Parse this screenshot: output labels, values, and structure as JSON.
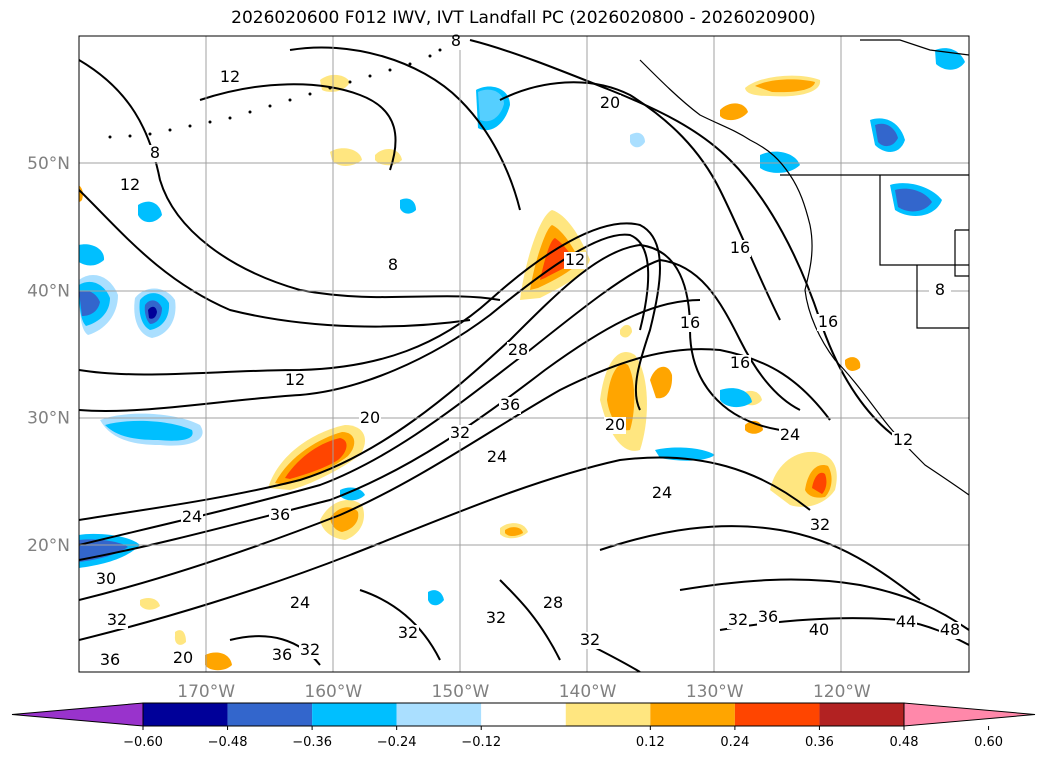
{
  "title": "2026020600 F012 IWV, IVT Landfall PC (2026020800 - 2026020900)",
  "map": {
    "lat_labels": [
      {
        "value": 50,
        "text": "50°N"
      },
      {
        "value": 40,
        "text": "40°N"
      },
      {
        "value": 30,
        "text": "30°N"
      },
      {
        "value": 20,
        "text": "20°N"
      }
    ],
    "lon_labels": [
      {
        "value": -170,
        "text": "170°W"
      },
      {
        "value": -160,
        "text": "160°W"
      },
      {
        "value": -150,
        "text": "150°W"
      },
      {
        "value": -140,
        "text": "140°W"
      },
      {
        "value": -130,
        "text": "130°W"
      },
      {
        "value": -120,
        "text": "120°W"
      }
    ],
    "contour_labels": [
      "12",
      "12",
      "8",
      "8",
      "8",
      "8",
      "12",
      "20",
      "16",
      "16",
      "16",
      "16",
      "12",
      "20",
      "36",
      "32",
      "24",
      "24",
      "20",
      "24",
      "36",
      "28",
      "32",
      "32",
      "32",
      "32",
      "28",
      "32",
      "36",
      "40",
      "44",
      "48",
      "24",
      "24",
      "32",
      "36",
      "36",
      "20",
      "30",
      "32",
      "12"
    ],
    "colors": {
      "contour": "#000000",
      "grid": "#a0a0a0",
      "coast": "#000000"
    }
  },
  "colorbar": {
    "ticks": [
      "−0.60",
      "−0.48",
      "−0.36",
      "−0.24",
      "−0.12",
      "0.12",
      "0.24",
      "0.36",
      "0.48",
      "0.60"
    ],
    "colors": [
      "#9933cc",
      "#000099",
      "#3366cc",
      "#00bfff",
      "#aadfff",
      "#ffffff",
      "#ffe680",
      "#ffa500",
      "#ff4500",
      "#b22222",
      "#ff88aa"
    ]
  }
}
